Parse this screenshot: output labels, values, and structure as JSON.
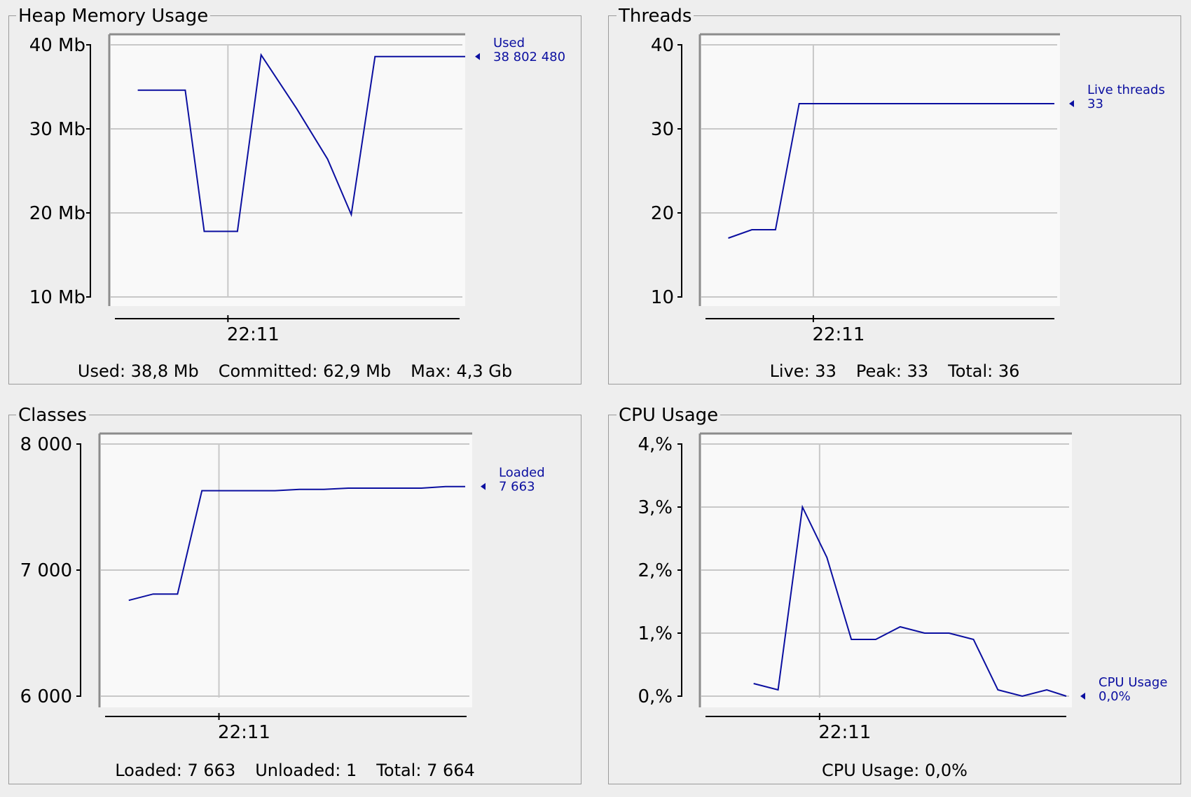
{
  "colors": {
    "line": "#0b0fa0",
    "plot_bg": "#f9f9f9",
    "grid": "#c8c8c8",
    "axis": "#000000"
  },
  "panels": [
    {
      "id": "heap",
      "title": "Heap Memory Usage",
      "stats": [
        {
          "label": "Used:",
          "value": "38,8 Mb"
        },
        {
          "label": "Committed:",
          "value": "62,9 Mb"
        },
        {
          "label": "Max:",
          "value": "4,3 Gb"
        }
      ]
    },
    {
      "id": "threads",
      "title": "Threads",
      "stats": [
        {
          "label": "Live:",
          "value": "33"
        },
        {
          "label": "Peak:",
          "value": "33"
        },
        {
          "label": "Total:",
          "value": "36"
        }
      ]
    },
    {
      "id": "classes",
      "title": "Classes",
      "stats": [
        {
          "label": "Loaded:",
          "value": "7 663"
        },
        {
          "label": "Unloaded:",
          "value": "1"
        },
        {
          "label": "Total:",
          "value": "7 664"
        }
      ]
    },
    {
      "id": "cpu",
      "title": "CPU Usage",
      "stats": [
        {
          "label": "CPU Usage:",
          "value": "0,0%"
        }
      ]
    }
  ],
  "chart_data": [
    {
      "type": "line",
      "title": "Heap Memory Usage",
      "ylim": [
        10,
        40
      ],
      "y_unit": "Mb",
      "yticks": [
        {
          "value": 40,
          "label": "40 Mb"
        },
        {
          "value": 30,
          "label": "30 Mb"
        },
        {
          "value": 20,
          "label": "20 Mb"
        },
        {
          "value": 10,
          "label": "10 Mb"
        }
      ],
      "xlim": [
        0,
        15
      ],
      "xticks": [
        {
          "value": 5,
          "label": "22:11"
        }
      ],
      "series": [
        {
          "name": "Used",
          "current": "38 802 480",
          "x": [
            1.2,
            3.2,
            4.0,
            4.4,
            5.4,
            6.4,
            7.9,
            9.2,
            10.2,
            11.2,
            15.0
          ],
          "y": [
            34.6,
            34.6,
            17.8,
            17.8,
            17.8,
            38.8,
            32.4,
            26.4,
            19.8,
            38.6,
            38.6
          ]
        }
      ]
    },
    {
      "type": "line",
      "title": "Threads",
      "ylim": [
        10,
        40
      ],
      "yticks": [
        {
          "value": 40,
          "label": "40"
        },
        {
          "value": 30,
          "label": "30"
        },
        {
          "value": 20,
          "label": "20"
        },
        {
          "value": 10,
          "label": "10"
        }
      ],
      "xlim": [
        0,
        15
      ],
      "xticks": [
        {
          "value": 4.8,
          "label": "22:11"
        }
      ],
      "series": [
        {
          "name": "Live threads",
          "current": "33",
          "x": [
            1.2,
            2.2,
            3.2,
            4.2,
            15.0
          ],
          "y": [
            17,
            18,
            18,
            33,
            33
          ]
        }
      ]
    },
    {
      "type": "line",
      "title": "Classes",
      "ylim": [
        6000,
        8000
      ],
      "yticks": [
        {
          "value": 8000,
          "label": "8 000"
        },
        {
          "value": 7000,
          "label": "7 000"
        },
        {
          "value": 6000,
          "label": "6 000"
        }
      ],
      "xlim": [
        0,
        15
      ],
      "xticks": [
        {
          "value": 4.9,
          "label": "22:11"
        }
      ],
      "series": [
        {
          "name": "Loaded",
          "current": "7 663",
          "x": [
            1.2,
            2.2,
            3.2,
            4.2,
            5.2,
            6.2,
            7.2,
            8.2,
            9.2,
            10.2,
            11.2,
            12.2,
            13.2,
            14.2,
            15.0
          ],
          "y": [
            6760,
            6810,
            6810,
            7630,
            7630,
            7630,
            7630,
            7640,
            7640,
            7650,
            7650,
            7650,
            7650,
            7663,
            7663
          ]
        }
      ]
    },
    {
      "type": "line",
      "title": "CPU Usage",
      "ylim": [
        0,
        4
      ],
      "yticks": [
        {
          "value": 4,
          "label": "4,%"
        },
        {
          "value": 3,
          "label": "3,%"
        },
        {
          "value": 2,
          "label": "2,%"
        },
        {
          "value": 1,
          "label": "1,%"
        },
        {
          "value": 0,
          "label": "0,%"
        }
      ],
      "xlim": [
        0,
        15
      ],
      "xticks": [
        {
          "value": 4.9,
          "label": "22:11"
        }
      ],
      "series": [
        {
          "name": "CPU Usage",
          "current": "0,0%",
          "x": [
            2.2,
            3.2,
            4.2,
            5.2,
            6.2,
            7.2,
            8.2,
            9.2,
            10.2,
            11.2,
            12.2,
            13.2,
            14.2,
            15.0
          ],
          "y": [
            0.2,
            0.1,
            3.0,
            2.2,
            0.9,
            0.9,
            1.1,
            1.0,
            1.0,
            0.9,
            0.1,
            0.0,
            0.1,
            0.0
          ]
        }
      ]
    }
  ]
}
